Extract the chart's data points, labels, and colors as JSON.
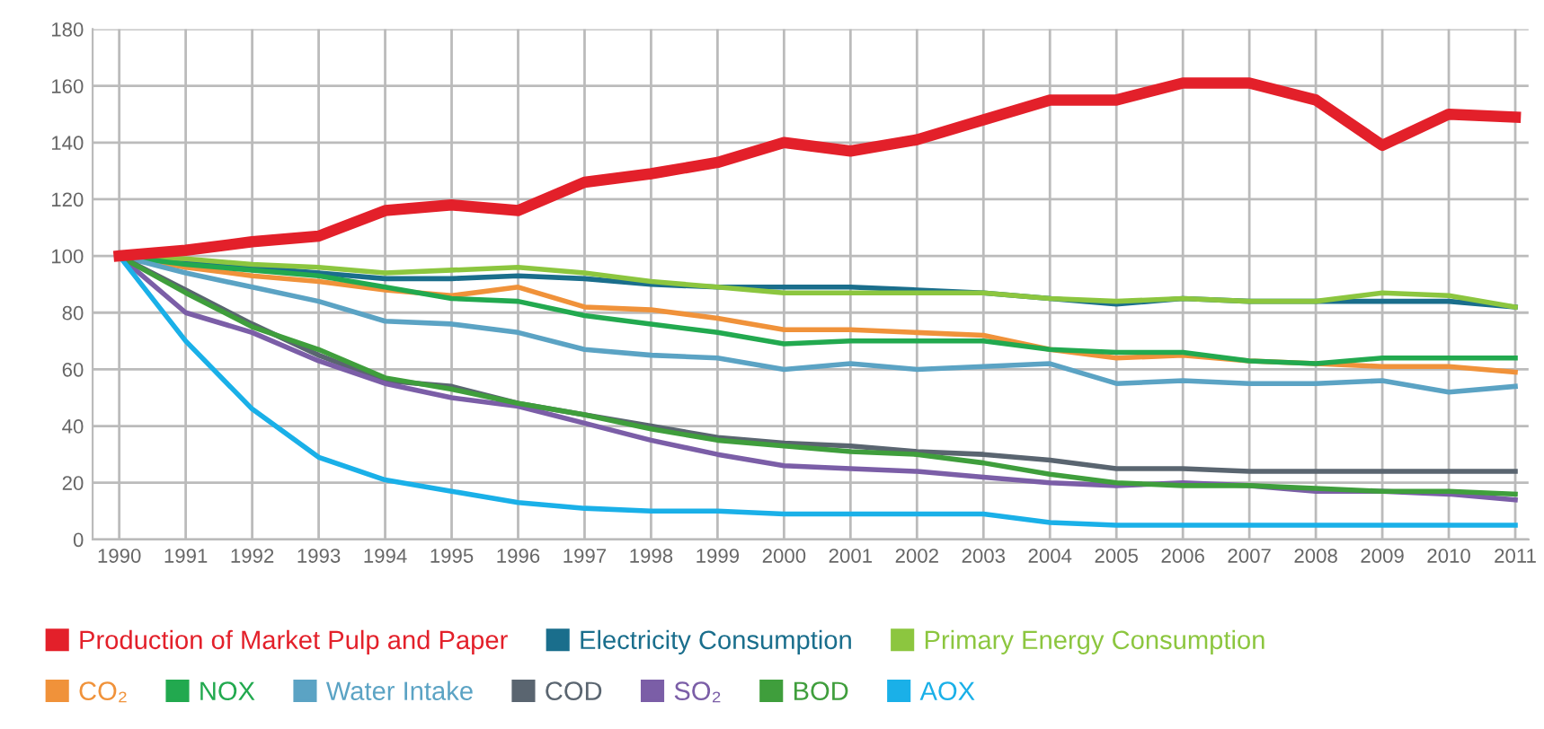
{
  "chart_data": {
    "type": "line",
    "x": [
      1990,
      1991,
      1992,
      1993,
      1994,
      1995,
      1996,
      1997,
      1998,
      1999,
      2000,
      2001,
      2002,
      2003,
      2004,
      2005,
      2006,
      2007,
      2008,
      2009,
      2010,
      2011
    ],
    "series": [
      {
        "name": "Production of Market Pulp and Paper",
        "color": "#e3202a",
        "values": [
          100,
          102,
          105,
          107,
          116,
          118,
          116,
          126,
          129,
          133,
          140,
          137,
          141,
          148,
          155,
          155,
          161,
          161,
          155,
          139,
          150,
          149
        ]
      },
      {
        "name": "Electricity Consumption",
        "color": "#1a6e8c",
        "values": [
          100,
          98,
          96,
          94,
          92,
          92,
          93,
          92,
          90,
          89,
          89,
          89,
          88,
          87,
          85,
          83,
          85,
          84,
          84,
          84,
          84,
          82
        ]
      },
      {
        "name": "Primary Energy Consumption",
        "color": "#8cc63f",
        "values": [
          100,
          99,
          97,
          96,
          94,
          95,
          96,
          94,
          91,
          89,
          87,
          87,
          87,
          87,
          85,
          84,
          85,
          84,
          84,
          87,
          86,
          82
        ]
      },
      {
        "name": "CO₂",
        "color": "#f0923a",
        "values": [
          100,
          96,
          93,
          91,
          88,
          86,
          89,
          82,
          81,
          78,
          74,
          74,
          73,
          72,
          67,
          64,
          65,
          63,
          62,
          61,
          61,
          59
        ]
      },
      {
        "name": "NOX",
        "color": "#22a94f",
        "values": [
          100,
          97,
          95,
          93,
          89,
          85,
          84,
          79,
          76,
          73,
          69,
          70,
          70,
          70,
          67,
          66,
          66,
          63,
          62,
          64,
          64,
          64
        ]
      },
      {
        "name": "Water Intake",
        "color": "#5ba3c4",
        "values": [
          100,
          94,
          89,
          84,
          77,
          76,
          73,
          67,
          65,
          64,
          60,
          62,
          60,
          61,
          62,
          55,
          56,
          55,
          55,
          56,
          52,
          54
        ]
      },
      {
        "name": "COD",
        "color": "#5a6570",
        "values": [
          100,
          88,
          76,
          65,
          56,
          54,
          48,
          44,
          40,
          36,
          34,
          33,
          31,
          30,
          28,
          25,
          25,
          24,
          24,
          24,
          24,
          24
        ]
      },
      {
        "name": "SO₂",
        "color": "#7b5ea7",
        "values": [
          100,
          80,
          73,
          63,
          55,
          50,
          47,
          41,
          35,
          30,
          26,
          25,
          24,
          22,
          20,
          19,
          20,
          19,
          17,
          17,
          16,
          14
        ]
      },
      {
        "name": "BOD",
        "color": "#3f9e3c",
        "values": [
          100,
          87,
          75,
          67,
          57,
          53,
          48,
          44,
          39,
          35,
          33,
          31,
          30,
          27,
          23,
          20,
          19,
          19,
          18,
          17,
          17,
          16
        ]
      },
      {
        "name": "AOX",
        "color": "#1ab0e8",
        "values": [
          100,
          70,
          46,
          29,
          21,
          17,
          13,
          11,
          10,
          10,
          9,
          9,
          9,
          9,
          6,
          5,
          5,
          5,
          5,
          5,
          5,
          5
        ]
      }
    ],
    "xlim": [
      1989.6,
      2011.2
    ],
    "xticks": [
      1990,
      1991,
      1992,
      1993,
      1994,
      1995,
      1996,
      1997,
      1998,
      1999,
      2000,
      2001,
      2002,
      2003,
      2004,
      2005,
      2006,
      2007,
      2008,
      2009,
      2010,
      2011
    ],
    "ylim": [
      0,
      180
    ],
    "yticks": [
      0,
      20,
      40,
      60,
      80,
      100,
      120,
      140,
      160,
      180
    ],
    "grid": true,
    "legend": "bottom",
    "marker": "none",
    "line_style": "solid"
  }
}
